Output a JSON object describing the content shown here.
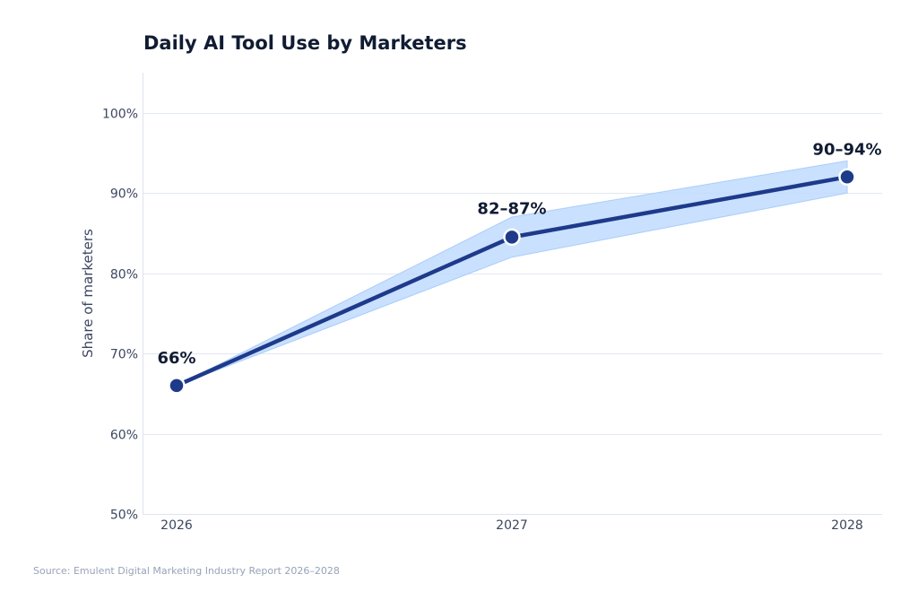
{
  "chart_data": {
    "type": "line",
    "title": "Daily AI Tool Use by Marketers",
    "xlabel": "",
    "ylabel": "Share of marketers",
    "categories": [
      "2026",
      "2027",
      "2028"
    ],
    "series": [
      {
        "name": "Daily AI tool use",
        "values": [
          66,
          84.5,
          92
        ],
        "range_low": [
          66,
          82,
          90
        ],
        "range_high": [
          66,
          87,
          94
        ],
        "color": "#1e3a8a",
        "band_color": "#bfdbfe"
      }
    ],
    "data_labels": [
      "66%",
      "82–87%",
      "90–94%"
    ],
    "ylim": [
      50,
      105
    ],
    "yticks": [
      50,
      60,
      70,
      80,
      90,
      100
    ],
    "ytick_labels": [
      "50%",
      "60%",
      "70%",
      "80%",
      "90%",
      "100%"
    ],
    "grid": true
  },
  "source": "Source: Emulent Digital Marketing Industry Report 2026–2028"
}
